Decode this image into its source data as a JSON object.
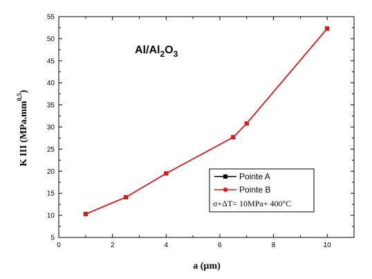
{
  "chart_data": {
    "type": "line",
    "title_main": "Al/Al",
    "title_sub1": "2",
    "title_mid": "O",
    "title_sub2": "3",
    "xlabel": "a (µm)",
    "ylabel_main": "K III (MPa.mm",
    "ylabel_sup": "0,5",
    "ylabel_close": ")",
    "xlim": [
      0,
      11
    ],
    "ylim": [
      5,
      55
    ],
    "xticks": [
      0,
      2,
      4,
      6,
      8,
      10
    ],
    "yticks": [
      5,
      10,
      15,
      20,
      25,
      30,
      35,
      40,
      45,
      50,
      55
    ],
    "grid": false,
    "legend_position": "lower-right",
    "annotation": "σ+ΔT= 10MPa+ 400°C",
    "series": [
      {
        "name": "Pointe A",
        "color": "#000000",
        "marker": "square",
        "x": [
          1,
          2.5,
          4,
          6.5,
          7,
          10
        ],
        "y": [
          10.3,
          14.1,
          19.5,
          27.7,
          30.8,
          52.3
        ]
      },
      {
        "name": "Pointe B",
        "color": "#e31a1c",
        "marker": "circle",
        "x": [
          1,
          2.5,
          4,
          6.5,
          7,
          10
        ],
        "y": [
          10.3,
          14.1,
          19.5,
          27.7,
          30.8,
          52.3
        ]
      }
    ]
  }
}
